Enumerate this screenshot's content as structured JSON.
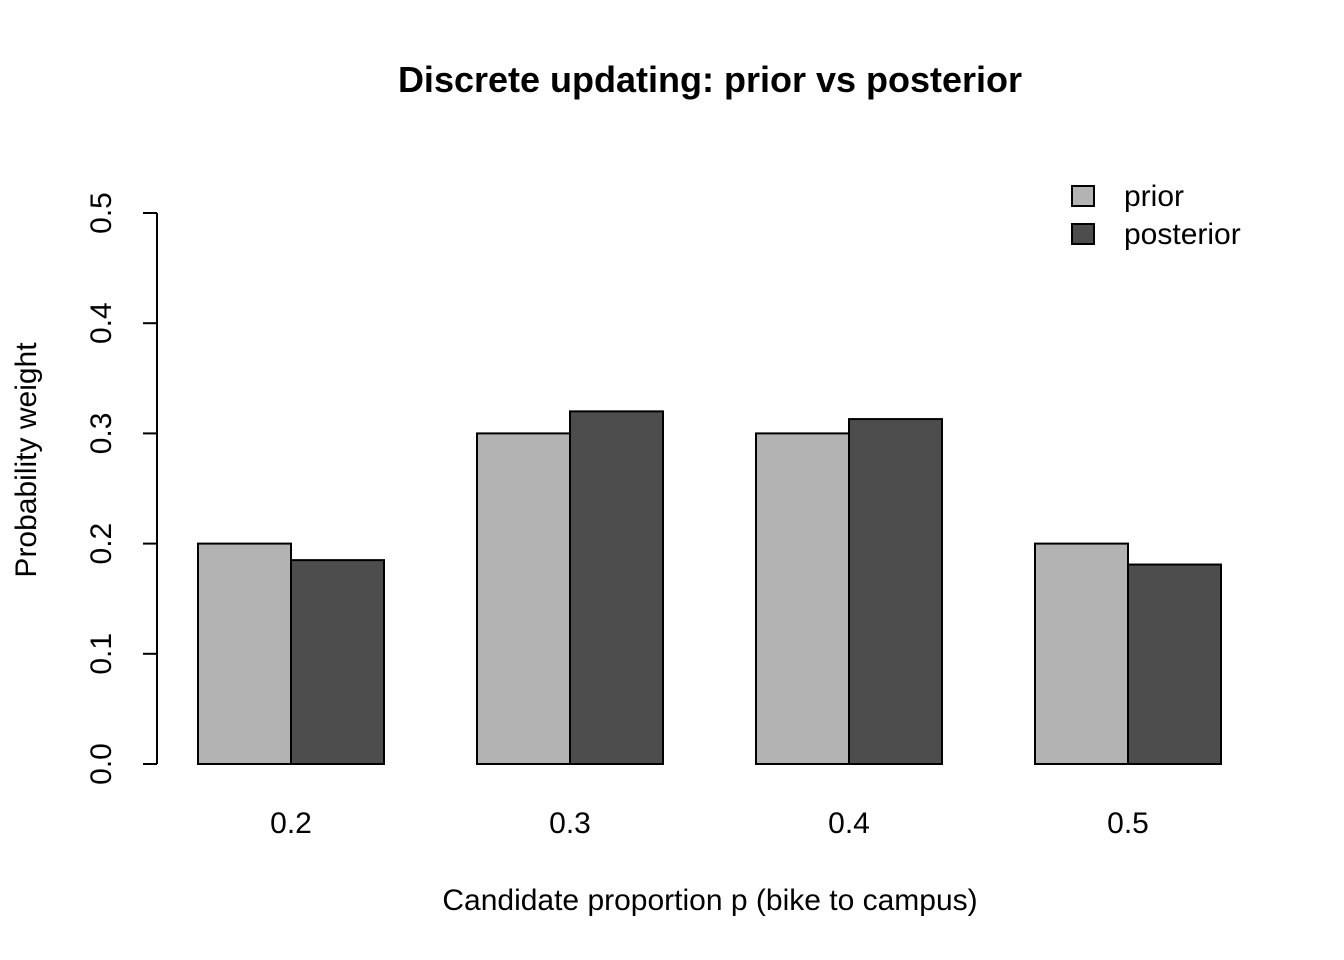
{
  "chart_data": {
    "type": "bar",
    "title": "Discrete updating: prior vs posterior",
    "xlabel": "Candidate proportion p (bike to campus)",
    "ylabel": "Probability weight",
    "categories": [
      "0.2",
      "0.3",
      "0.4",
      "0.5"
    ],
    "series": [
      {
        "name": "prior",
        "values": [
          0.2,
          0.3,
          0.3,
          0.2
        ],
        "color": "#b3b3b3"
      },
      {
        "name": "posterior",
        "values": [
          0.185,
          0.32,
          0.313,
          0.181
        ],
        "color": "#4d4d4d"
      }
    ],
    "ylim": [
      0,
      0.5
    ],
    "yticks": [
      "0.0",
      "0.1",
      "0.2",
      "0.3",
      "0.4",
      "0.5"
    ],
    "grid": false,
    "legend_position": "top-right"
  }
}
